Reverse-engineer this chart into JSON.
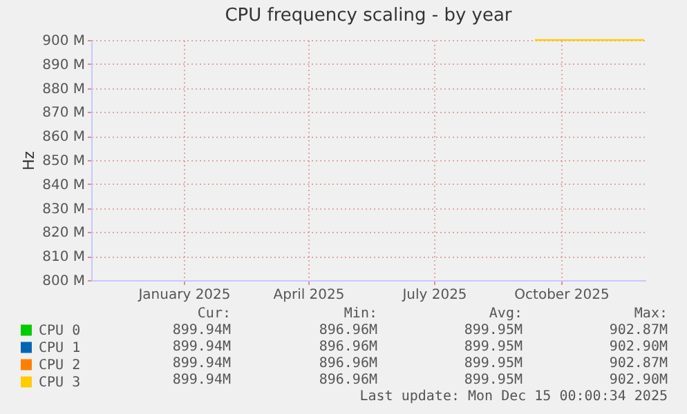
{
  "chart_data": {
    "type": "line",
    "title": "CPU frequency scaling - by year",
    "ylabel": "Hz",
    "xlim": [
      "2024-10-26",
      "2025-12-01"
    ],
    "xticks": [
      {
        "value": "2025-01-01",
        "label": "January 2025"
      },
      {
        "value": "2025-04-01",
        "label": "April 2025"
      },
      {
        "value": "2025-07-01",
        "label": "July 2025"
      },
      {
        "value": "2025-10-01",
        "label": "October 2025"
      }
    ],
    "ylim": [
      800,
      900
    ],
    "yticks": [
      {
        "value": 800,
        "label": "800 M"
      },
      {
        "value": 810,
        "label": "810 M"
      },
      {
        "value": 820,
        "label": "820 M"
      },
      {
        "value": 830,
        "label": "830 M"
      },
      {
        "value": 840,
        "label": "840 M"
      },
      {
        "value": 850,
        "label": "850 M"
      },
      {
        "value": 860,
        "label": "860 M"
      },
      {
        "value": 870,
        "label": "870 M"
      },
      {
        "value": 880,
        "label": "880 M"
      },
      {
        "value": 890,
        "label": "890 M"
      },
      {
        "value": 900,
        "label": "900 M"
      }
    ],
    "x": [
      "2025-09-12",
      "2025-11-30"
    ],
    "series": [
      {
        "name": "CPU 0",
        "color": "#00cc00",
        "values": [
          null,
          null
        ]
      },
      {
        "name": "CPU 1",
        "color": "#0066b3",
        "values": [
          null,
          null
        ]
      },
      {
        "name": "CPU 2",
        "color": "#ff8000",
        "values": [
          null,
          null
        ]
      },
      {
        "name": "CPU 3",
        "color": "#ffcc00",
        "values": [
          900,
          900
        ]
      }
    ],
    "grid": true,
    "legend": "bottom left",
    "annotations": [
      "Cur:",
      "Min:",
      "Avg:",
      "Max:",
      "899.94M",
      "896.96M",
      "899.95M",
      "902.87M",
      "899.94M",
      "896.96M",
      "899.95M",
      "902.90M",
      "899.94M",
      "896.96M",
      "899.95M",
      "902.87M",
      "899.94M",
      "896.96M",
      "899.95M",
      "902.90M",
      "Last update: Mon Dec 15 00:00:34 2025"
    ]
  }
}
